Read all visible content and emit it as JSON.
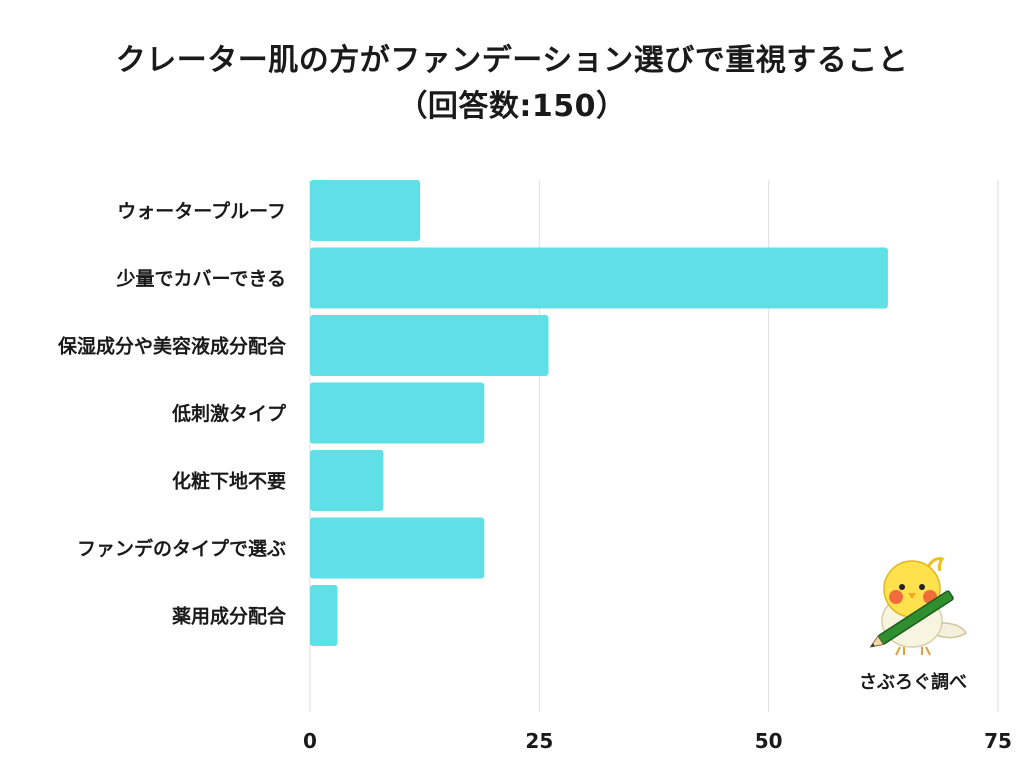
{
  "title": {
    "line1": "クレーター肌の方がファンデーション選びで重視すること",
    "line2": "（回答数:150）"
  },
  "credit": "さぶろぐ調べ",
  "colors": {
    "bar": "#5ee0e6",
    "grid": "#dedede",
    "text": "#1a1a1a"
  },
  "chart_data": {
    "type": "bar",
    "orientation": "horizontal",
    "title": "クレーター肌の方がファンデーション選びで重視すること（回答数:150）",
    "categories": [
      "ウォータープルーフ",
      "少量でカバーできる",
      "保湿成分や美容液成分配合",
      "低刺激タイプ",
      "化粧下地不要",
      "ファンデのタイプで選ぶ",
      "薬用成分配合"
    ],
    "values": [
      12,
      63,
      26,
      19,
      8,
      19,
      3
    ],
    "xlim": [
      0,
      75
    ],
    "xticks": [
      0,
      25,
      50,
      75
    ],
    "xlabel": "",
    "ylabel": "",
    "grid": true,
    "legend": "none"
  }
}
